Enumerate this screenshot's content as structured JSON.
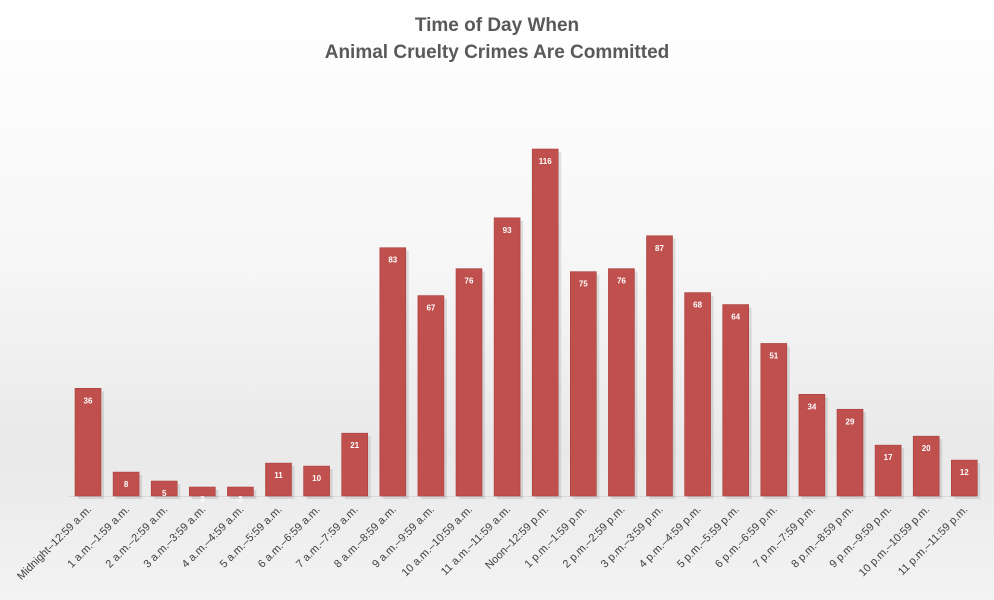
{
  "chart_data": {
    "type": "bar",
    "title_lines": [
      "Time of Day When",
      "Animal Cruelty Crimes Are Committed"
    ],
    "xlabel": "",
    "ylabel": "",
    "categories": [
      "Midnight–12:59 a.m.",
      "1 a.m.–1:59 a.m.",
      "2 a.m.–2:59 a.m.",
      "3 a.m.–3:59 a.m.",
      "4 a.m.–4:59 a.m.",
      "5 a.m.–5:59 a.m.",
      "6 a.m.–6:59 a.m.",
      "7 a.m.–7:59 a.m.",
      "8 a.m.–8:59 a.m.",
      "9 a.m.–9:59 a.m.",
      "10 a.m.–10:59 a.m.",
      "11 a.m.–11:59 a.m.",
      "Noon–12:59 p.m.",
      "1 p.m.–1:59 p.m.",
      "2 p.m.–2:59 p.m.",
      "3 p.m.–3:59 p.m.",
      "4 p.m.–4:59 p.m.",
      "5 p.m.–5:59 p.m.",
      "6 p.m.–6:59 p.m.",
      "7 p.m.–7:59 p.m.",
      "8 p.m.–8:59 p.m.",
      "9 p.m.–9:59 p.m.",
      "10 p.m.–10:59 p.m.",
      "11 p.m.–11:59 p.m."
    ],
    "values": [
      36,
      8,
      5,
      3,
      3,
      11,
      10,
      21,
      83,
      67,
      76,
      93,
      116,
      75,
      76,
      87,
      68,
      64,
      51,
      34,
      29,
      17,
      20,
      12
    ],
    "ylim": [
      0,
      118
    ],
    "grid": false,
    "legend": "none",
    "bar_color": "#c0504d",
    "label_color": "#ffffff"
  }
}
